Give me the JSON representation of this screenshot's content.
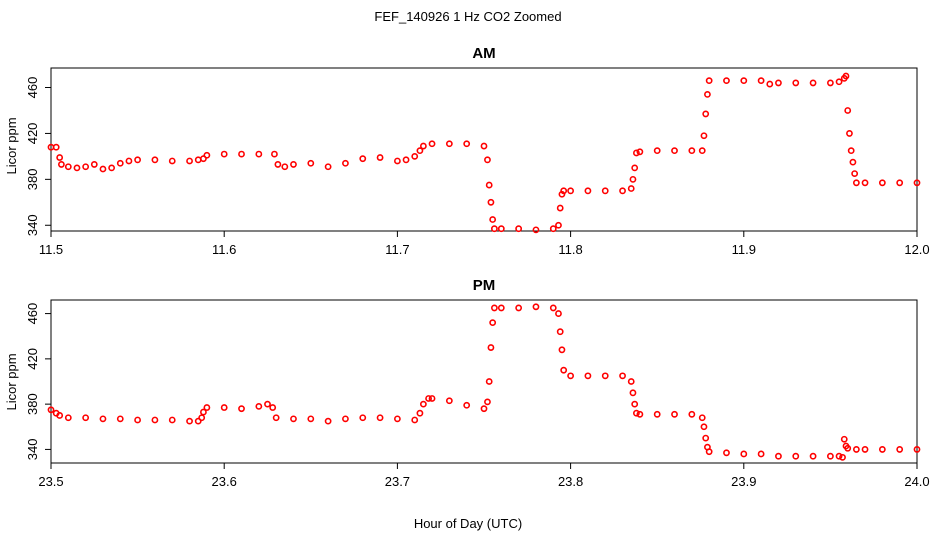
{
  "figure": {
    "title": "FEF_140926  1 Hz CO2 Zoomed",
    "xlabel": "Hour of Day (UTC)",
    "point_color": "#ff0000"
  },
  "chart_data": [
    {
      "type": "scatter",
      "title": "AM",
      "xlabel": "",
      "ylabel": "Licor ppm",
      "xlim": [
        11.5,
        12.0
      ],
      "ylim": [
        335,
        477
      ],
      "xticks": [
        "11.5",
        "11.6",
        "11.7",
        "11.8",
        "11.9",
        "12.0"
      ],
      "yticks": [
        "340",
        "380",
        "420",
        "460"
      ],
      "marker": "open-circle",
      "color": "#ff0000",
      "x": [
        11.5,
        11.503,
        11.505,
        11.506,
        11.51,
        11.515,
        11.52,
        11.525,
        11.53,
        11.535,
        11.54,
        11.545,
        11.55,
        11.56,
        11.57,
        11.58,
        11.585,
        11.588,
        11.59,
        11.6,
        11.61,
        11.62,
        11.629,
        11.631,
        11.635,
        11.64,
        11.65,
        11.66,
        11.67,
        11.68,
        11.69,
        11.7,
        11.705,
        11.71,
        11.713,
        11.715,
        11.72,
        11.73,
        11.74,
        11.75,
        11.752,
        11.753,
        11.754,
        11.755,
        11.756,
        11.76,
        11.77,
        11.78,
        11.79,
        11.793,
        11.794,
        11.795,
        11.796,
        11.8,
        11.81,
        11.82,
        11.83,
        11.835,
        11.836,
        11.837,
        11.838,
        11.84,
        11.85,
        11.86,
        11.87,
        11.876,
        11.877,
        11.878,
        11.879,
        11.88,
        11.89,
        11.9,
        11.91,
        11.915,
        11.92,
        11.93,
        11.94,
        11.95,
        11.955,
        11.958,
        11.959,
        11.96,
        11.961,
        11.962,
        11.963,
        11.964,
        11.965,
        11.97,
        11.98,
        11.99,
        12.0
      ],
      "y": [
        408,
        408,
        399,
        393,
        391,
        390,
        391,
        393,
        389,
        390,
        394,
        396,
        397,
        397,
        396,
        396,
        397,
        398,
        401,
        402,
        402,
        402,
        402,
        393,
        391,
        393,
        394,
        391,
        394,
        398,
        399,
        396,
        397,
        400,
        405,
        409,
        411,
        411,
        411,
        409,
        397,
        375,
        360,
        345,
        337,
        337,
        337,
        336,
        337,
        340,
        355,
        367,
        370,
        370,
        370,
        370,
        370,
        372,
        380,
        390,
        403,
        404,
        405,
        405,
        405,
        405,
        418,
        437,
        454,
        466,
        466,
        466,
        466,
        463,
        464,
        464,
        464,
        464,
        465,
        468,
        470,
        440,
        420,
        405,
        395,
        385,
        377,
        377,
        377,
        377,
        377
      ]
    },
    {
      "type": "scatter",
      "title": "PM",
      "xlabel": "",
      "ylabel": "Licor ppm",
      "xlim": [
        23.5,
        24.0
      ],
      "ylim": [
        328,
        472
      ],
      "xticks": [
        "23.5",
        "23.6",
        "23.7",
        "23.8",
        "23.9",
        "24.0"
      ],
      "yticks": [
        "340",
        "380",
        "420",
        "460"
      ],
      "marker": "open-circle",
      "color": "#ff0000",
      "x": [
        23.5,
        23.503,
        23.505,
        23.51,
        23.52,
        23.53,
        23.54,
        23.55,
        23.56,
        23.57,
        23.58,
        23.585,
        23.587,
        23.588,
        23.59,
        23.6,
        23.61,
        23.62,
        23.625,
        23.628,
        23.63,
        23.64,
        23.65,
        23.66,
        23.67,
        23.68,
        23.69,
        23.7,
        23.71,
        23.713,
        23.715,
        23.718,
        23.72,
        23.73,
        23.74,
        23.75,
        23.752,
        23.753,
        23.754,
        23.755,
        23.756,
        23.76,
        23.77,
        23.78,
        23.79,
        23.793,
        23.794,
        23.795,
        23.796,
        23.8,
        23.81,
        23.82,
        23.83,
        23.835,
        23.836,
        23.837,
        23.838,
        23.84,
        23.85,
        23.86,
        23.87,
        23.876,
        23.877,
        23.878,
        23.879,
        23.88,
        23.89,
        23.9,
        23.91,
        23.92,
        23.93,
        23.94,
        23.95,
        23.955,
        23.957,
        23.958,
        23.959,
        23.96,
        23.965,
        23.97,
        23.98,
        23.99,
        24.0
      ],
      "y": [
        375,
        372,
        370,
        368,
        368,
        367,
        367,
        366,
        366,
        366,
        365,
        365,
        368,
        373,
        377,
        377,
        376,
        378,
        380,
        377,
        368,
        367,
        367,
        365,
        367,
        368,
        368,
        367,
        366,
        372,
        380,
        385,
        385,
        383,
        379,
        376,
        382,
        400,
        430,
        452,
        465,
        465,
        465,
        466,
        465,
        460,
        444,
        428,
        410,
        405,
        405,
        405,
        405,
        400,
        390,
        380,
        372,
        371,
        371,
        371,
        371,
        368,
        360,
        350,
        342,
        338,
        337,
        336,
        336,
        334,
        334,
        334,
        334,
        334,
        333,
        349,
        343,
        341,
        340,
        340,
        340,
        340,
        340
      ]
    }
  ]
}
